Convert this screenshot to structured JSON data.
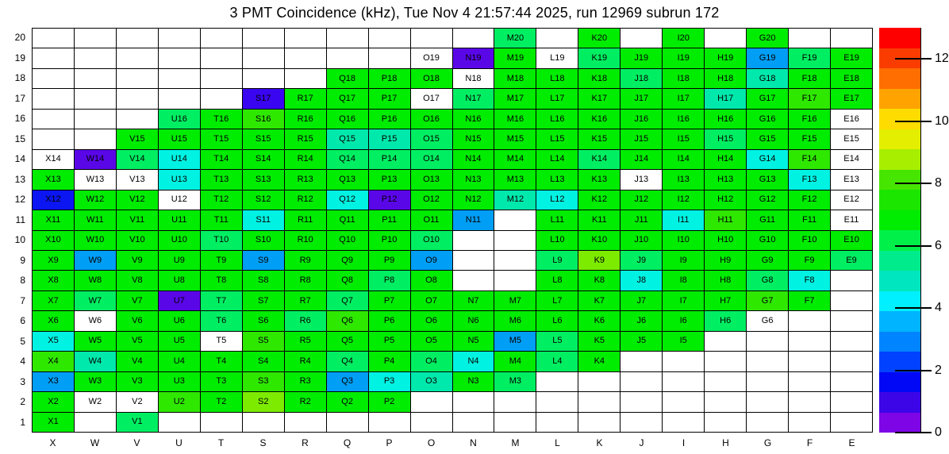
{
  "title": "3 PMT Coincidence (kHz), Tue Nov  4 21:57:44 2025, run 12969 subrun 172",
  "chart_data": {
    "type": "heatmap",
    "title": "3 PMT Coincidence (kHz), Tue Nov  4 21:57:44 2025, run 12969 subrun 172",
    "run": "12969",
    "subrun": "172",
    "timestamp": "Tue Nov  4 21:57:44 2025",
    "columns": [
      "X",
      "W",
      "V",
      "U",
      "T",
      "S",
      "R",
      "Q",
      "P",
      "O",
      "N",
      "M",
      "L",
      "K",
      "J",
      "I",
      "H",
      "G",
      "F",
      "E"
    ],
    "rows": [
      20,
      19,
      18,
      17,
      16,
      15,
      14,
      13,
      12,
      11,
      10,
      9,
      8,
      7,
      6,
      5,
      4,
      3,
      2,
      1
    ],
    "palette": {
      "g": {
        "hex": "#00ec00",
        "approx_khz": 7
      },
      "bg": {
        "hex": "#2fe800",
        "approx_khz": 8
      },
      "yg": {
        "hex": "#7deb00",
        "approx_khz": 9
      },
      "sg": {
        "hex": "#00ef62",
        "approx_khz": 6
      },
      "tq": {
        "hex": "#00e9ac",
        "approx_khz": 5
      },
      "cy": {
        "hex": "#00f2e2",
        "approx_khz": 4.5
      },
      "lb": {
        "hex": "#009ef5",
        "approx_khz": 3
      },
      "bl": {
        "hex": "#0b16f2",
        "approx_khz": 2
      },
      "bv": {
        "hex": "#3a05f0",
        "approx_khz": 1
      },
      "vi": {
        "hex": "#5a07e8",
        "approx_khz": 0.8
      },
      "w": {
        "hex": "#ffffff",
        "approx_khz": null
      }
    },
    "cells_by_row": [
      {
        "row": 20,
        "cells": [
          "",
          "",
          "",
          "",
          "",
          "",
          "",
          "",
          "",
          "",
          "",
          "M20:sg",
          "",
          "K20:g",
          "",
          "I20:g",
          "",
          "G20:g",
          "",
          ""
        ]
      },
      {
        "row": 19,
        "cells": [
          "",
          "",
          "",
          "",
          "",
          "",
          "",
          "",
          "",
          "O19:w",
          "N19:vi",
          "M19:g",
          "L19:w",
          "K19:sg",
          "J19:g",
          "I19:g",
          "H19:g",
          "G19:lb",
          "F19:sg",
          "E19:g"
        ]
      },
      {
        "row": 18,
        "cells": [
          "",
          "",
          "",
          "",
          "",
          "",
          "",
          "Q18:g",
          "P18:g",
          "O18:g",
          "N18:w",
          "M18:g",
          "L18:g",
          "K18:g",
          "J18:sg",
          "I18:g",
          "H18:g",
          "G18:tq",
          "F18:g",
          "E18:g"
        ]
      },
      {
        "row": 17,
        "cells": [
          "",
          "",
          "",
          "",
          "",
          "S17:bv",
          "R17:g",
          "Q17:g",
          "P17:g",
          "O17:w",
          "N17:sg",
          "M17:g",
          "L17:g",
          "K17:g",
          "J17:g",
          "I17:g",
          "H17:tq",
          "G17:g",
          "F17:bg",
          "E17:g"
        ]
      },
      {
        "row": 16,
        "cells": [
          "",
          "",
          "",
          "U16:sg",
          "T16:g",
          "S16:bg",
          "R16:g",
          "Q16:g",
          "P16:g",
          "O16:g",
          "N16:g",
          "M16:g",
          "L16:g",
          "K16:g",
          "J16:g",
          "I16:g",
          "H16:g",
          "G16:g",
          "F16:g",
          "E16:w"
        ]
      },
      {
        "row": 15,
        "cells": [
          "",
          "",
          "V15:g",
          "U15:g",
          "T15:g",
          "S15:g",
          "R15:g",
          "Q15:tq",
          "P15:tq",
          "O15:sg",
          "N15:g",
          "M15:g",
          "L15:g",
          "K15:g",
          "J15:g",
          "I15:g",
          "H15:sg",
          "G15:g",
          "F15:g",
          "E15:w"
        ]
      },
      {
        "row": 14,
        "cells": [
          "X14:w",
          "W14:vi",
          "V14:sg",
          "U14:cy",
          "T14:g",
          "S14:g",
          "R14:g",
          "Q14:sg",
          "P14:sg",
          "O14:sg",
          "N14:g",
          "M14:g",
          "L14:g",
          "K14:sg",
          "J14:g",
          "I14:g",
          "H14:g",
          "G14:cy",
          "F14:bg",
          "E14:w"
        ]
      },
      {
        "row": 13,
        "cells": [
          "X13:g",
          "W13:w",
          "V13:w",
          "U13:cy",
          "T13:g",
          "S13:g",
          "R13:g",
          "Q13:g",
          "P13:g",
          "O13:g",
          "N13:g",
          "M13:g",
          "L13:g",
          "K13:g",
          "J13:w",
          "I13:g",
          "H13:g",
          "G13:g",
          "F13:cy",
          "E13:w"
        ]
      },
      {
        "row": 12,
        "cells": [
          "X12:bl",
          "W12:g",
          "V12:g",
          "U12:w",
          "T12:g",
          "S12:g",
          "R12:g",
          "Q12:cy",
          "P12:vi",
          "O12:g",
          "N12:g",
          "M12:tq",
          "L12:cy",
          "K12:g",
          "J12:g",
          "I12:g",
          "H12:g",
          "G12:g",
          "F12:g",
          "E12:w"
        ]
      },
      {
        "row": 11,
        "cells": [
          "X11:g",
          "W11:g",
          "V11:g",
          "U11:g",
          "T11:g",
          "S11:cy",
          "R11:g",
          "Q11:g",
          "P11:g",
          "O11:g",
          "N11:lb",
          "",
          "L11:g",
          "K11:g",
          "J11:g",
          "I11:cy",
          "H11:bg",
          "G11:g",
          "F11:g",
          "E11:w"
        ]
      },
      {
        "row": 10,
        "cells": [
          "X10:g",
          "W10:g",
          "V10:g",
          "U10:g",
          "T10:sg",
          "S10:g",
          "R10:g",
          "Q10:g",
          "P10:g",
          "O10:sg",
          "",
          "",
          "L10:g",
          "K10:g",
          "J10:g",
          "I10:g",
          "H10:g",
          "G10:g",
          "F10:g",
          "E10:g"
        ]
      },
      {
        "row": 9,
        "cells": [
          "X9:g",
          "W9:lb",
          "V9:g",
          "U9:g",
          "T9:g",
          "S9:lb",
          "R9:g",
          "Q9:g",
          "P9:g",
          "O9:lb",
          "",
          "",
          "L9:sg",
          "K9:yg",
          "J9:sg",
          "I9:g",
          "H9:g",
          "G9:g",
          "F9:g",
          "E9:sg"
        ]
      },
      {
        "row": 8,
        "cells": [
          "X8:g",
          "W8:g",
          "V8:g",
          "U8:g",
          "T8:g",
          "S8:g",
          "R8:g",
          "Q8:g",
          "P8:sg",
          "O8:g",
          "",
          "",
          "L8:g",
          "K8:g",
          "J8:cy",
          "I8:g",
          "H8:g",
          "G8:sg",
          "F8:cy",
          ""
        ]
      },
      {
        "row": 7,
        "cells": [
          "X7:g",
          "W7:sg",
          "V7:g",
          "U7:vi",
          "T7:sg",
          "S7:g",
          "R7:g",
          "Q7:sg",
          "P7:g",
          "O7:g",
          "N7:g",
          "M7:g",
          "L7:g",
          "K7:g",
          "J7:g",
          "I7:g",
          "H7:g",
          "G7:bg",
          "F7:g",
          ""
        ]
      },
      {
        "row": 6,
        "cells": [
          "X6:g",
          "W6:w",
          "V6:g",
          "U6:g",
          "T6:sg",
          "S6:g",
          "R6:sg",
          "Q6:bg",
          "P6:g",
          "O6:g",
          "N6:g",
          "M6:g",
          "L6:g",
          "K6:g",
          "J6:g",
          "I6:g",
          "H6:sg",
          "G6:w",
          "",
          ""
        ]
      },
      {
        "row": 5,
        "cells": [
          "X5:cy",
          "W5:g",
          "V5:g",
          "U5:g",
          "T5:w",
          "S5:bg",
          "R5:g",
          "Q5:g",
          "P5:g",
          "O5:g",
          "N5:g",
          "M5:lb",
          "L5:sg",
          "K5:g",
          "J5:g",
          "I5:g",
          "",
          "",
          "",
          ""
        ]
      },
      {
        "row": 4,
        "cells": [
          "X4:bg",
          "W4:tq",
          "V4:g",
          "U4:g",
          "T4:g",
          "S4:g",
          "R4:g",
          "Q4:sg",
          "P4:g",
          "O4:sg",
          "N4:cy",
          "M4:g",
          "L4:sg",
          "K4:g",
          "",
          "",
          "",
          "",
          "",
          ""
        ]
      },
      {
        "row": 3,
        "cells": [
          "X3:lb",
          "W3:g",
          "V3:g",
          "U3:g",
          "T3:g",
          "S3:bg",
          "R3:g",
          "Q3:lb",
          "P3:cy",
          "O3:tq",
          "N3:g",
          "M3:sg",
          "",
          "",
          "",
          "",
          "",
          "",
          "",
          ""
        ]
      },
      {
        "row": 2,
        "cells": [
          "X2:g",
          "W2:w",
          "V2:w",
          "U2:bg",
          "T2:g",
          "S2:yg",
          "R2:g",
          "Q2:g",
          "P2:g",
          "",
          "",
          "",
          "",
          "",
          "",
          "",
          "",
          "",
          "",
          ""
        ]
      },
      {
        "row": 1,
        "cells": [
          "X1:g",
          "",
          "V1:sg",
          "",
          "",
          "",
          "",
          "",
          "",
          "",
          "",
          "",
          "",
          "",
          "",
          "",
          "",
          "",
          "",
          ""
        ]
      }
    ],
    "colorbar": {
      "min": 0,
      "max": 13,
      "tick_values": [
        12,
        10,
        8,
        6,
        4,
        2,
        0
      ],
      "bands_top_to_bottom": [
        "#ff0000",
        "#fa3c00",
        "#ff6e00",
        "#ffa300",
        "#ffdc00",
        "#e3ee00",
        "#a8ee00",
        "#46e600",
        "#1ae600",
        "#00ec00",
        "#00f04a",
        "#00eb8c",
        "#00e6be",
        "#00f0ff",
        "#00b4ff",
        "#0084ff",
        "#0042ff",
        "#0008f5",
        "#3c05e8",
        "#7d05e6"
      ]
    },
    "grid_on": true,
    "legend_position": "right"
  }
}
